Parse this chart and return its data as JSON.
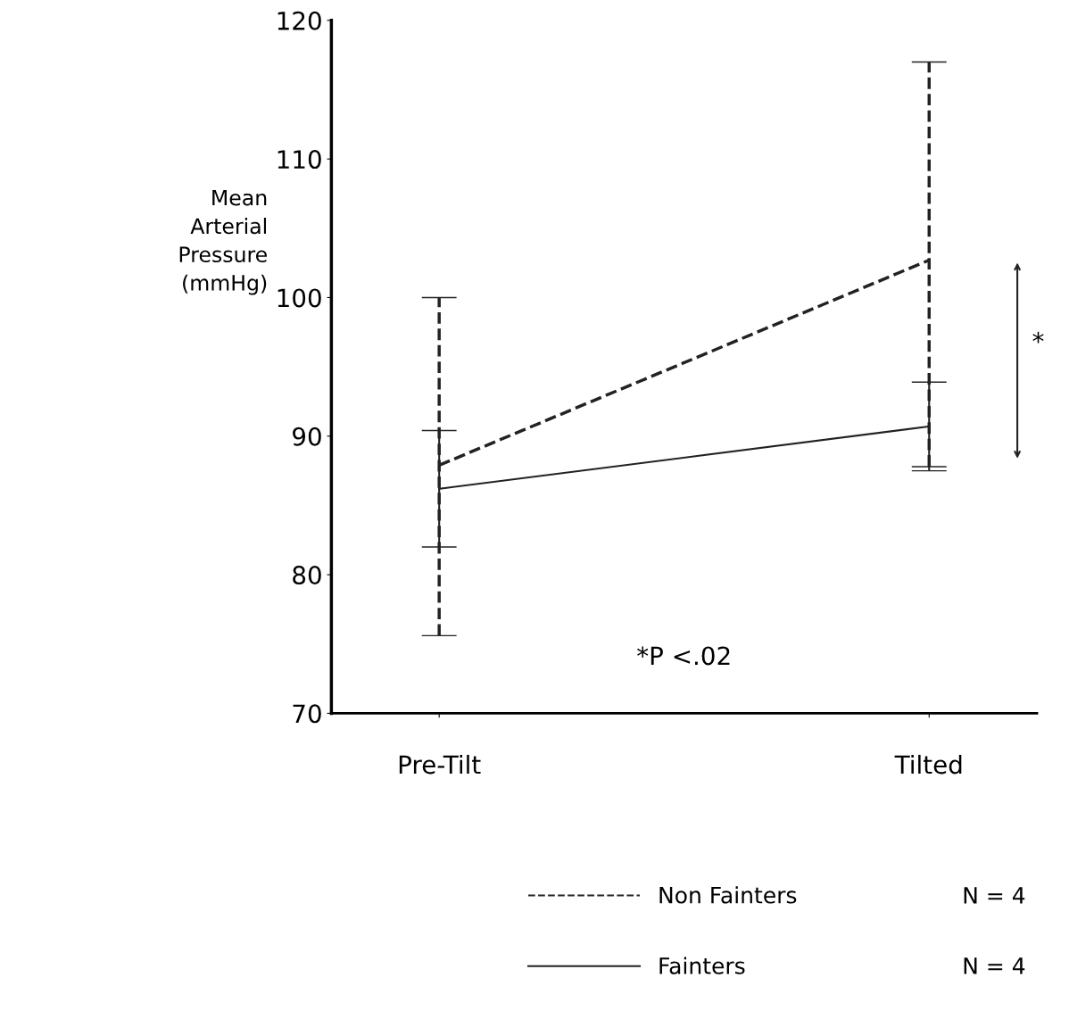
{
  "chart_data": {
    "type": "line",
    "ylabel": "Mean\nArterial\nPressure\n(mmHg)",
    "categories": [
      "Pre-Tilt",
      "Tilted"
    ],
    "ylim": [
      70,
      120
    ],
    "yticks": [
      70,
      80,
      90,
      100,
      110,
      120
    ],
    "grid": false,
    "legend": "bottom",
    "marker": "none",
    "series": [
      {
        "name": "Non Fainters",
        "color": "#222222",
        "line_style": "dashed",
        "values": [
          87.9,
          102.7
        ],
        "errors": [
          [
            75.6,
            100
          ],
          [
            87.8,
            117
          ]
        ]
      },
      {
        "name": "Fainters",
        "color": "#222222",
        "line_style": "solid",
        "values": [
          86.2,
          90.7
        ],
        "errors": [
          [
            82,
            90.4
          ],
          [
            87.5,
            93.9
          ]
        ]
      }
    ],
    "annotations": [
      "*P <.02",
      "*",
      "N = 4",
      "N = 4"
    ]
  }
}
